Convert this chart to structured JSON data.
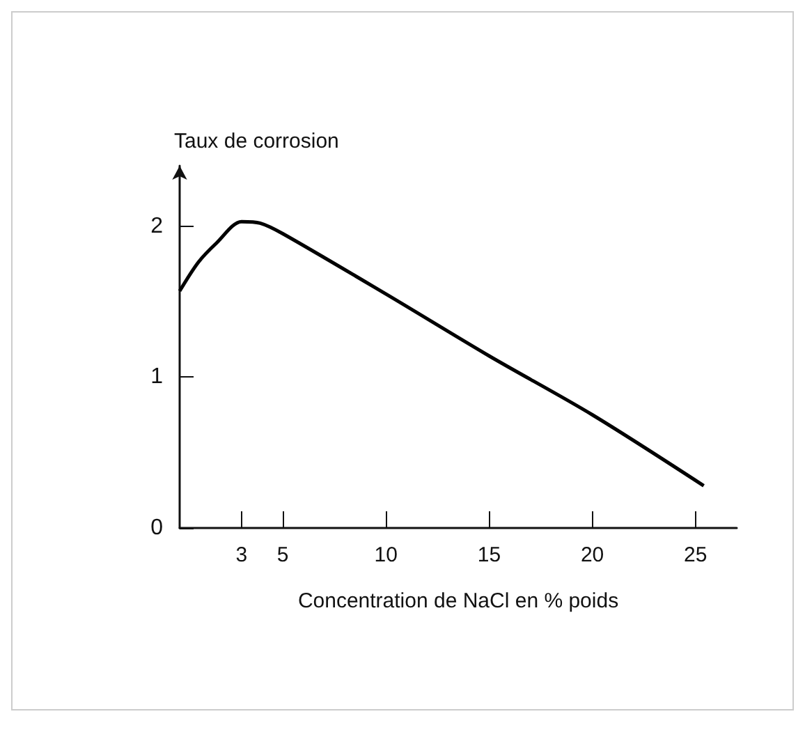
{
  "chart_data": {
    "type": "line",
    "xlabel": "Concentration de NaCl en % poids",
    "ylabel": "Taux de corrosion",
    "x": [
      0,
      0.9,
      1.8,
      3,
      3.9,
      5,
      10,
      15,
      20,
      25.4
    ],
    "series": [
      {
        "color": "#000000",
        "values": [
          1.57,
          1.76,
          1.89,
          2.03,
          2.02,
          1.95,
          1.55,
          1.14,
          0.75,
          0.28
        ]
      }
    ],
    "xlim": [
      0,
      27
    ],
    "xticks": [
      3,
      5,
      10,
      15,
      20,
      25
    ],
    "ylim": [
      0,
      2.4
    ],
    "yticks": [
      0,
      1,
      2
    ],
    "grid": false,
    "marker": "none",
    "line_style": "solid"
  }
}
